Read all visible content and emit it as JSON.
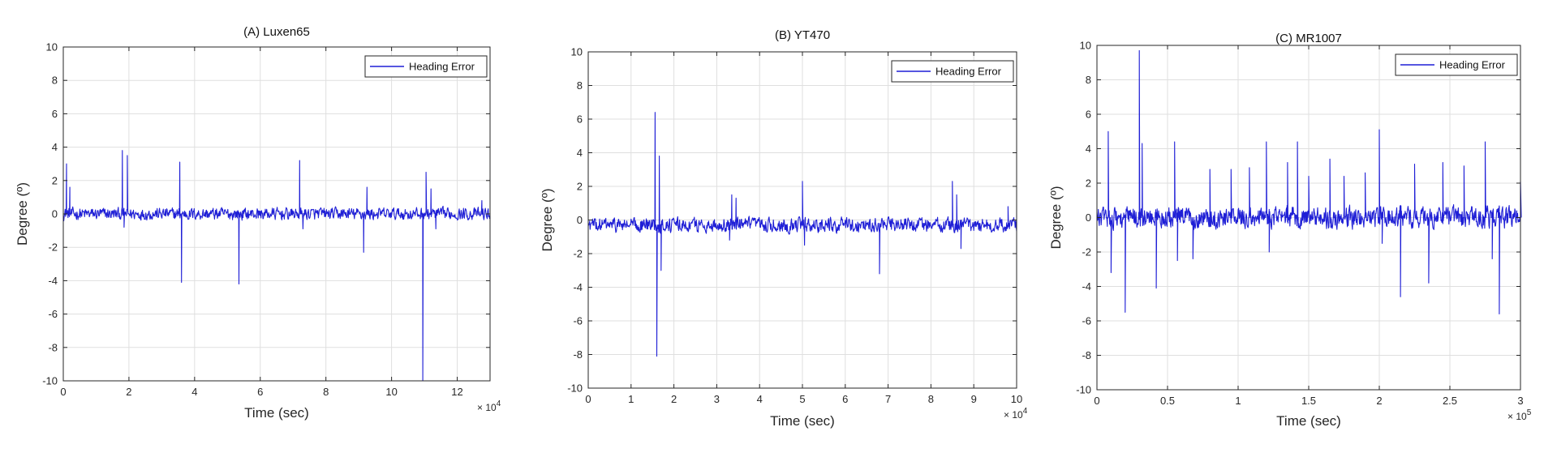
{
  "colors": {
    "series": "#1f1fd6",
    "grid": "#dfdfdf",
    "axis": "#262626",
    "background": "#ffffff"
  },
  "chart_data": [
    {
      "type": "line",
      "title": "(A) Luxen65",
      "xlabel": "Time (sec)",
      "ylabel": "Degree (º)",
      "x_multiplier_label": "× 10^4",
      "xlim": [
        0,
        13
      ],
      "ylim": [
        -10,
        10
      ],
      "xticks": [
        0,
        2,
        4,
        6,
        8,
        10,
        12
      ],
      "yticks": [
        -10,
        -8,
        -6,
        -4,
        -2,
        0,
        2,
        4,
        6,
        8,
        10
      ],
      "grid": true,
      "legend": {
        "placement": "top-right"
      },
      "series": [
        {
          "name": "Heading Error",
          "baseline": 0.0,
          "noise": 0.32,
          "spikes": [
            [
              0.1,
              3.0
            ],
            [
              0.2,
              1.6
            ],
            [
              1.8,
              3.8
            ],
            [
              1.95,
              3.5
            ],
            [
              1.85,
              -0.8
            ],
            [
              3.55,
              3.1
            ],
            [
              3.6,
              -4.1
            ],
            [
              5.35,
              -4.2
            ],
            [
              7.2,
              3.2
            ],
            [
              7.3,
              -0.9
            ],
            [
              9.15,
              -2.3
            ],
            [
              9.25,
              1.6
            ],
            [
              10.95,
              -10.0
            ],
            [
              11.05,
              2.5
            ],
            [
              11.2,
              1.5
            ],
            [
              11.35,
              -0.9
            ],
            [
              12.75,
              0.8
            ]
          ]
        }
      ]
    },
    {
      "type": "line",
      "title": "(B) YT470",
      "xlabel": "Time (sec)",
      "ylabel": "Degree (º)",
      "x_multiplier_label": "× 10^4",
      "xlim": [
        0,
        10
      ],
      "ylim": [
        -10,
        10
      ],
      "xticks": [
        0,
        1,
        2,
        3,
        4,
        5,
        6,
        7,
        8,
        9,
        10
      ],
      "yticks": [
        -10,
        -8,
        -6,
        -4,
        -2,
        0,
        2,
        4,
        6,
        8,
        10
      ],
      "grid": true,
      "legend": {
        "placement": "top-right"
      },
      "series": [
        {
          "name": "Heading Error",
          "baseline": -0.3,
          "noise": 0.38,
          "spikes": [
            [
              1.56,
              6.4
            ],
            [
              1.6,
              -8.1
            ],
            [
              1.66,
              3.8
            ],
            [
              1.7,
              -3.0
            ],
            [
              3.35,
              1.5
            ],
            [
              3.45,
              1.3
            ],
            [
              3.3,
              -1.2
            ],
            [
              5.0,
              2.3
            ],
            [
              5.05,
              -1.5
            ],
            [
              6.8,
              -3.2
            ],
            [
              8.5,
              2.3
            ],
            [
              8.6,
              1.5
            ],
            [
              8.7,
              -1.7
            ],
            [
              9.8,
              0.8
            ]
          ]
        }
      ]
    },
    {
      "type": "line",
      "title": "(C) MR1007",
      "xlabel": "Time (sec)",
      "ylabel": "Degree (º)",
      "x_multiplier_label": "× 10^5",
      "xlim": [
        0,
        3
      ],
      "ylim": [
        -10,
        10
      ],
      "xticks": [
        0,
        0.5,
        1,
        1.5,
        2,
        2.5,
        3
      ],
      "xtick_labels": [
        "0",
        "0.5",
        "1",
        "1.5",
        "2",
        "2.5",
        "3"
      ],
      "yticks": [
        -10,
        -8,
        -6,
        -4,
        -2,
        0,
        2,
        4,
        6,
        8,
        10
      ],
      "grid": true,
      "legend": {
        "placement": "top-right"
      },
      "series": [
        {
          "name": "Heading Error",
          "baseline": 0.0,
          "noise": 0.55,
          "spikes": [
            [
              0.08,
              5.0
            ],
            [
              0.1,
              -3.2
            ],
            [
              0.2,
              -5.5
            ],
            [
              0.3,
              9.7
            ],
            [
              0.32,
              4.3
            ],
            [
              0.42,
              -4.1
            ],
            [
              0.55,
              4.4
            ],
            [
              0.57,
              -2.5
            ],
            [
              0.68,
              -2.4
            ],
            [
              0.8,
              2.8
            ],
            [
              0.95,
              2.8
            ],
            [
              1.08,
              2.9
            ],
            [
              1.2,
              4.4
            ],
            [
              1.22,
              -2.0
            ],
            [
              1.35,
              3.2
            ],
            [
              1.42,
              4.4
            ],
            [
              1.5,
              2.4
            ],
            [
              1.65,
              3.4
            ],
            [
              1.75,
              2.4
            ],
            [
              1.9,
              2.6
            ],
            [
              2.0,
              5.1
            ],
            [
              2.02,
              -1.5
            ],
            [
              2.15,
              -4.6
            ],
            [
              2.25,
              3.1
            ],
            [
              2.35,
              -3.8
            ],
            [
              2.45,
              3.2
            ],
            [
              2.6,
              3.0
            ],
            [
              2.75,
              4.4
            ],
            [
              2.8,
              -2.4
            ],
            [
              2.85,
              -5.6
            ],
            [
              3.0,
              2.1
            ]
          ]
        }
      ]
    }
  ]
}
